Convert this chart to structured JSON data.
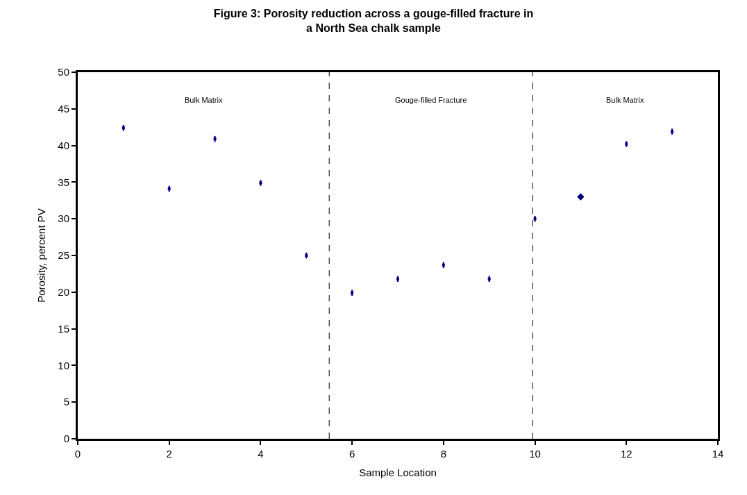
{
  "chart_data": {
    "type": "scatter",
    "title": "Figure 3: Porosity reduction across a gouge-filled fracture in\na North Sea chalk sample",
    "xlabel": "Sample Location",
    "ylabel": "Porosity, percent PV",
    "series": [
      {
        "color": "#000080",
        "marker": "square",
        "x": [
          1,
          2,
          3,
          4,
          5,
          6,
          7,
          8,
          9,
          10,
          12,
          13
        ],
        "values": [
          42.4,
          34.1,
          40.9,
          34.9,
          25,
          19.9,
          21.8,
          23.7,
          21.8,
          30,
          40.2,
          41.9
        ],
        "errors": [
          0.4,
          0.4,
          0.4,
          0.4,
          0.4,
          0.4,
          0.4,
          0.4,
          0.4,
          0.4,
          0.4,
          0.4
        ]
      },
      {
        "color": "#000080",
        "marker": "diamond",
        "x": [
          11
        ],
        "values": [
          33
        ]
      }
    ],
    "xlim": [
      0,
      14
    ],
    "xticks": [
      0,
      2,
      4,
      6,
      8,
      10,
      12,
      14
    ],
    "ylim": [
      0,
      50
    ],
    "yticks": [
      0,
      5,
      10,
      15,
      20,
      25,
      30,
      35,
      40,
      45,
      50
    ],
    "ref_lines": [
      {
        "axis": "x",
        "value": 5.5,
        "color": "#000000",
        "line_style": "dashed"
      },
      {
        "axis": "x",
        "value": 9.95,
        "color": "#000000",
        "line_style": "dashed"
      }
    ],
    "annotations": [
      "Bulk Matrix",
      "Gouge-filled Fracture",
      "Bulk Matrix"
    ],
    "grid": false
  }
}
